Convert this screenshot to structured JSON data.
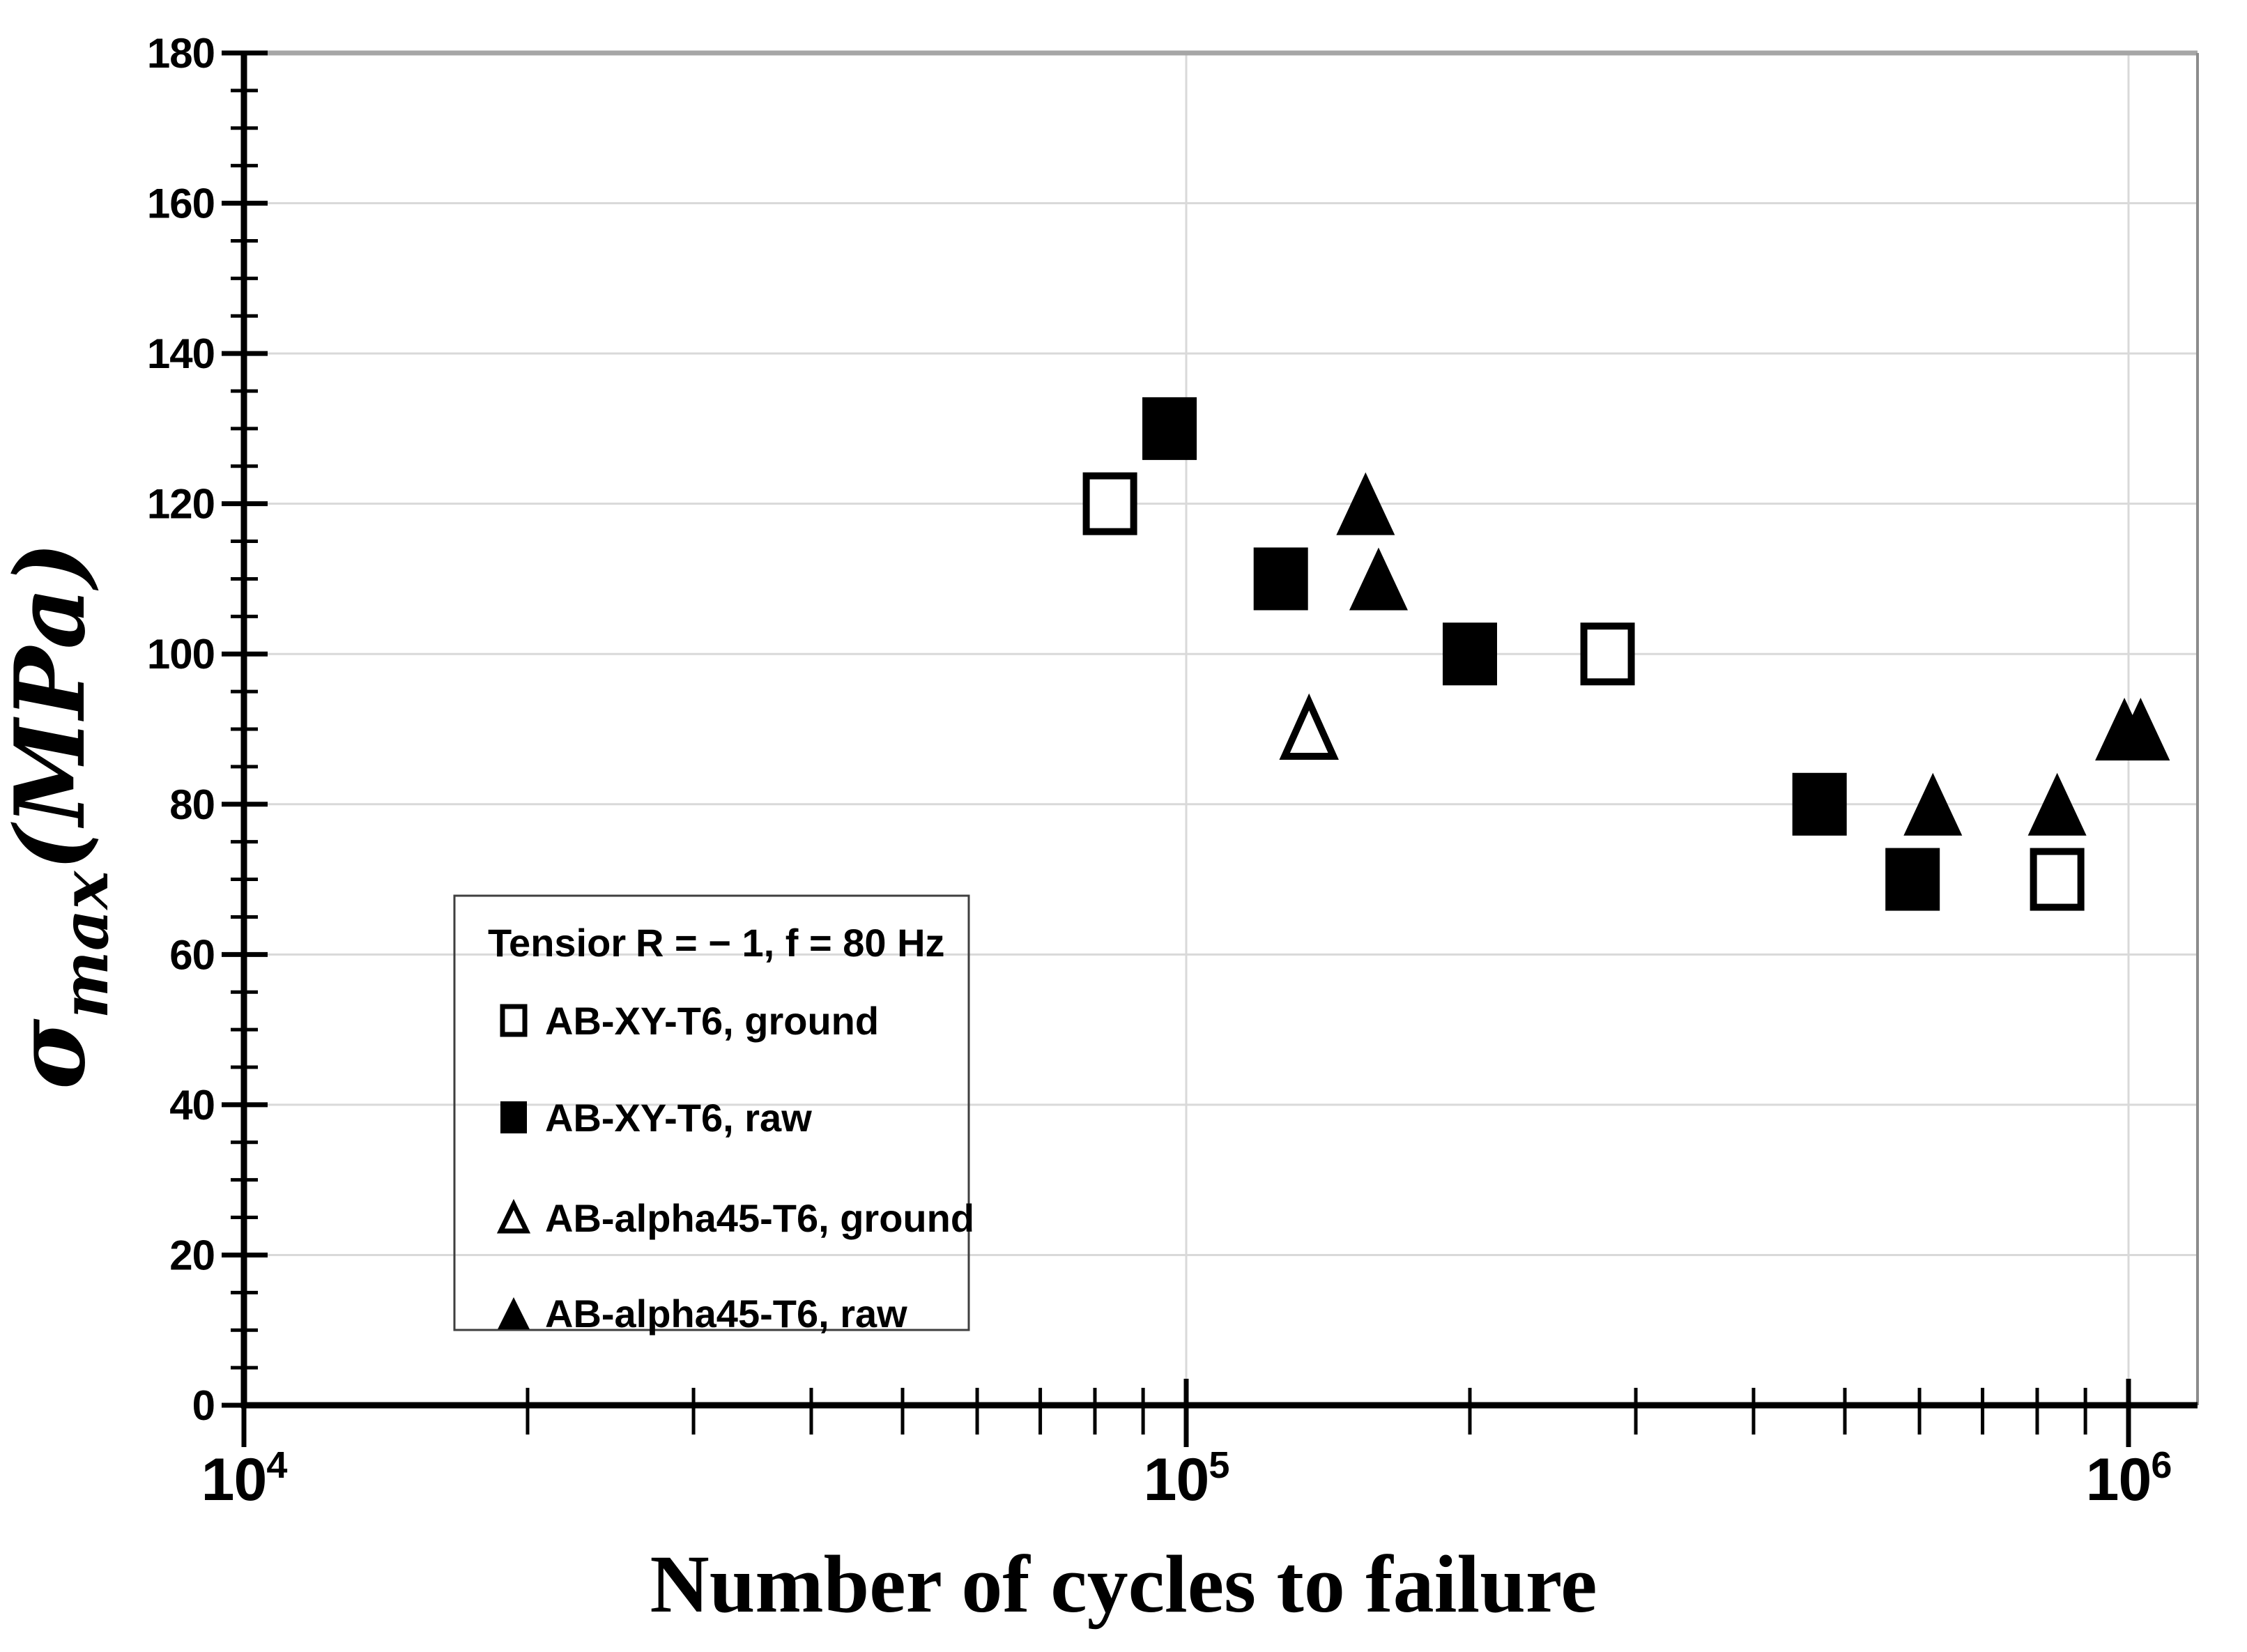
{
  "chart_data": {
    "type": "scatter",
    "xlabel": "Number of cycles to failure",
    "ylabel": {
      "sigma": "σ",
      "subscript": "max",
      "unit": "(MPa)"
    },
    "x_axis": {
      "scale": "log",
      "min": 10000,
      "max": 1190000,
      "grid_decades": [
        5,
        6
      ]
    },
    "y_axis": {
      "min": 0,
      "max": 180,
      "major_step": 20,
      "minor_step": 5
    },
    "x_ticks": [
      {
        "base": "10",
        "exp": "4"
      },
      {
        "base": "10",
        "exp": "5"
      },
      {
        "base": "10",
        "exp": "6"
      }
    ],
    "y_ticks": [
      0,
      20,
      40,
      60,
      80,
      100,
      120,
      140,
      160,
      180
    ],
    "grid": "on",
    "legend": {
      "position": "lower-left",
      "title": "Tensior",
      "condition": "R = − 1, f = 80 Hz",
      "entries": [
        {
          "marker": "square-open",
          "label": "AB-XY-T6, ground"
        },
        {
          "marker": "square-filled",
          "label": "AB-XY-T6, raw"
        },
        {
          "marker": "triangle-open",
          "label": "AB-alpha45-T6, ground"
        },
        {
          "marker": "triangle-filled",
          "label": "AB-alpha45-T6, raw"
        }
      ]
    },
    "series": [
      {
        "name": "AB-XY-T6, ground",
        "marker": "square-open",
        "points": [
          [
            83000,
            120
          ],
          [
            280000,
            100
          ],
          [
            840000,
            70
          ]
        ]
      },
      {
        "name": "AB-XY-T6, raw",
        "marker": "square-filled",
        "points": [
          [
            96000,
            130
          ],
          [
            126000,
            110
          ],
          [
            200000,
            100
          ],
          [
            470000,
            80
          ],
          [
            590000,
            70
          ]
        ]
      },
      {
        "name": "AB-alpha45-T6, ground",
        "marker": "triangle-open",
        "points": [
          [
            135000,
            90
          ]
        ]
      },
      {
        "name": "AB-alpha45-T6, raw",
        "marker": "triangle-filled",
        "points": [
          [
            155000,
            120
          ],
          [
            160000,
            110
          ],
          [
            620000,
            80
          ],
          [
            840000,
            80
          ],
          [
            990000,
            90
          ],
          [
            1030000,
            90
          ]
        ]
      }
    ],
    "colors": {
      "marker": "#000000",
      "grid": "#d9d9d9",
      "axis": "#000000",
      "border_top": "#a6a6a6",
      "border_right": "#8c8c8c",
      "legend_border": "#3f3f3f",
      "background": "#ffffff"
    }
  }
}
